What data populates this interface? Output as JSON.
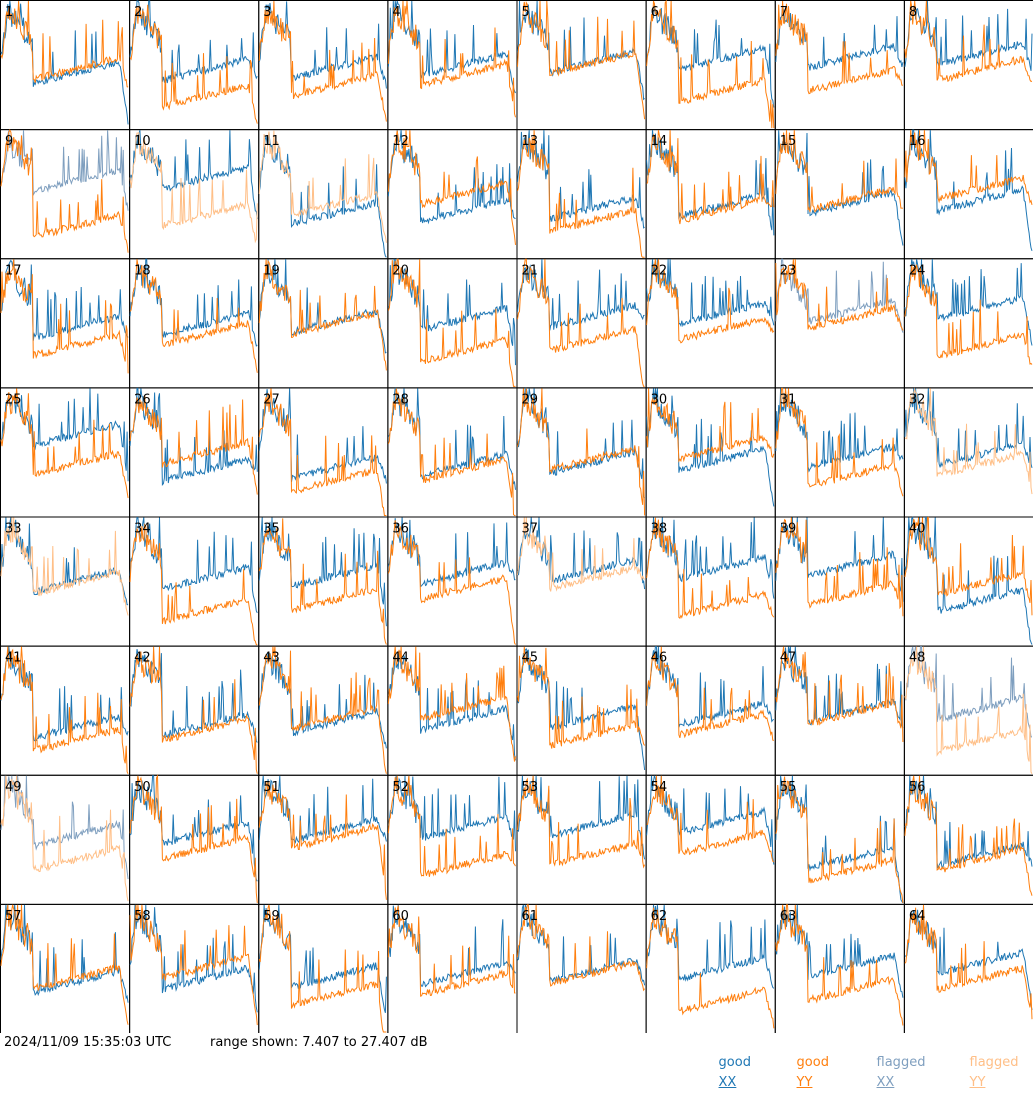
{
  "chart_data": {
    "type": "line",
    "title": "",
    "panel_count": 64,
    "layout": {
      "rows": 8,
      "columns": 8
    },
    "panels": [
      "1",
      "2",
      "3",
      "4",
      "5",
      "6",
      "7",
      "8",
      "9",
      "10",
      "11",
      "12",
      "13",
      "14",
      "15",
      "16",
      "17",
      "18",
      "19",
      "20",
      "21",
      "22",
      "23",
      "24",
      "25",
      "26",
      "27",
      "28",
      "29",
      "30",
      "31",
      "32",
      "33",
      "34",
      "35",
      "36",
      "37",
      "38",
      "39",
      "40",
      "41",
      "42",
      "43",
      "44",
      "45",
      "46",
      "47",
      "48",
      "49",
      "50",
      "51",
      "52",
      "53",
      "54",
      "55",
      "56",
      "57",
      "58",
      "59",
      "60",
      "61",
      "62",
      "63",
      "64"
    ],
    "y_range_db": [
      7.407,
      27.407
    ],
    "series": [
      {
        "name": "good XX",
        "color": "#1f77b4"
      },
      {
        "name": "good YY",
        "color": "#ff7f0e"
      },
      {
        "name": "flagged XX",
        "color": "#7f9fbf"
      },
      {
        "name": "flagged YY",
        "color": "#ffbf87"
      }
    ],
    "flagged_xx_panels": [
      9,
      23,
      48,
      49
    ],
    "flagged_yy_panels": [
      10,
      11,
      32,
      33,
      37,
      48,
      49
    ],
    "grid": false,
    "legend_position": "bottom-right"
  },
  "footer": {
    "timestamp": "2024/11/09 15:35:03 UTC",
    "range_text": "range shown: 7.407 to 27.407 dB",
    "legend": [
      {
        "word": "good",
        "pol": "XX",
        "color": "#1f77b4"
      },
      {
        "word": "good",
        "pol": "YY",
        "color": "#ff7f0e"
      },
      {
        "word": "flagged",
        "pol": "XX",
        "color": "#7f9fbf"
      },
      {
        "word": "flagged",
        "pol": "YY",
        "color": "#ffbf87"
      }
    ]
  }
}
